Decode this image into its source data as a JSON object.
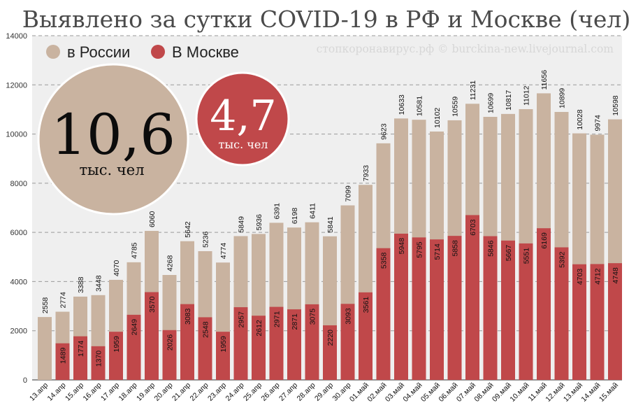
{
  "chart_data": {
    "type": "bar",
    "title": "Выявлено за сутки COVID-19 в РФ и Москве (чел)",
    "credit": "стопкоронавирус.рф © burckina-new.livejournal.com",
    "ylim": [
      0,
      14000
    ],
    "yticks": [
      0,
      2000,
      4000,
      6000,
      8000,
      10000,
      12000,
      14000
    ],
    "grid": true,
    "legend_position": "top-left",
    "categories": [
      "13.апр",
      "14.апр",
      "15.апр",
      "16.апр",
      "17.апр",
      "18.апр",
      "19.апр",
      "20.апр",
      "21.апр",
      "22.апр",
      "23.апр",
      "24.апр",
      "25.апр",
      "26.апр",
      "27.апр",
      "28.апр",
      "29.апр",
      "30.апр",
      "01.май",
      "02.май",
      "03.май",
      "04.май",
      "05.май",
      "06.май",
      "07.май",
      "08.май",
      "09.май",
      "10.май",
      "11.май",
      "12.май",
      "13.май",
      "14.май",
      "15.май"
    ],
    "series": [
      {
        "name": "в России",
        "color": "#c9b3a0",
        "values": [
          2558,
          2774,
          3388,
          3448,
          4070,
          4785,
          6060,
          4268,
          5642,
          5236,
          4774,
          5849,
          5936,
          6391,
          6198,
          6411,
          5841,
          7099,
          7933,
          9623,
          10633,
          10581,
          10102,
          10559,
          11231,
          10699,
          10817,
          11012,
          11656,
          10899,
          10028,
          9974,
          10598
        ]
      },
      {
        "name": "В Москве",
        "color": "#c0484a",
        "values": [
          null,
          1489,
          1774,
          1370,
          1959,
          2649,
          3570,
          2026,
          3083,
          2548,
          1959,
          2957,
          2612,
          2971,
          2871,
          3075,
          2220,
          3093,
          3561,
          5358,
          5948,
          5795,
          5714,
          5858,
          6703,
          5846,
          5667,
          5551,
          6169,
          5392,
          4703,
          4712,
          4748
        ]
      }
    ],
    "callouts": {
      "russia_value": "10,6",
      "russia_unit": "тыс. чел",
      "russia_color": "#c9b3a0",
      "moscow_value": "4,7",
      "moscow_unit": "тыс. чел",
      "moscow_color": "#c0484a"
    }
  }
}
